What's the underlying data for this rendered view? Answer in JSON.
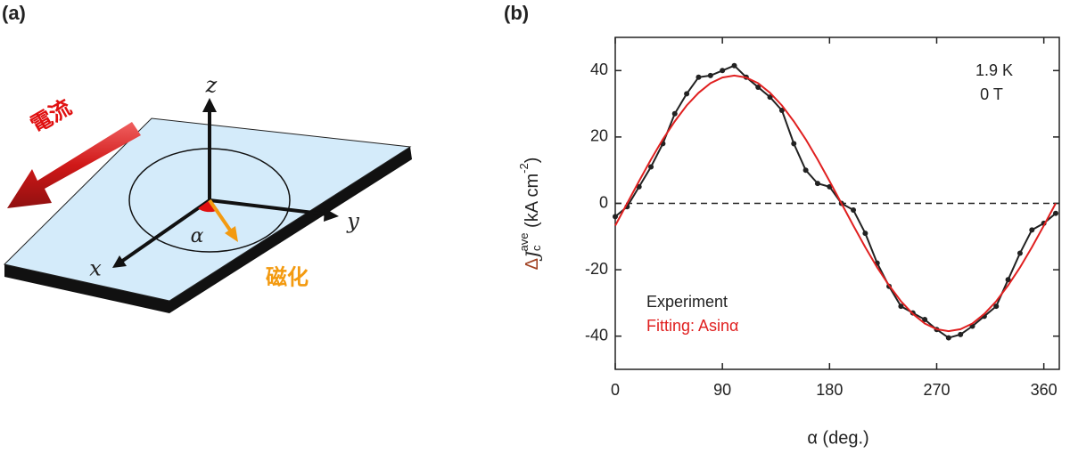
{
  "diagram": {
    "label": "(a)",
    "current_label": "電流",
    "magnetization_label": "磁化",
    "x_axis": "x",
    "y_axis": "y",
    "z_axis": "z",
    "angle_label": "α"
  },
  "chart_data": {
    "label": "(b)",
    "type": "line",
    "xlabel": "α (deg.)",
    "ylabel_parts": [
      "Δ",
      "J",
      "c",
      "ave",
      " (kA cm",
      "-2",
      ")"
    ],
    "annotations": [
      "1.9 K",
      "0 T"
    ],
    "xlim": [
      0,
      373
    ],
    "ylim": [
      -50,
      50
    ],
    "xticks": [
      0,
      90,
      180,
      270,
      360
    ],
    "yticks": [
      -40,
      -20,
      0,
      20,
      40
    ],
    "reference_line": 0,
    "series": [
      {
        "name": "Experiment",
        "color": "#222222",
        "markers": true,
        "x": [
          0,
          10,
          20,
          30,
          40,
          50,
          60,
          70,
          80,
          90,
          100,
          110,
          120,
          130,
          140,
          150,
          160,
          170,
          180,
          190,
          200,
          210,
          220,
          230,
          240,
          250,
          260,
          270,
          280,
          290,
          300,
          310,
          320,
          330,
          340,
          350,
          360,
          370
        ],
        "values": [
          -4,
          -1,
          5,
          11,
          18,
          27,
          33,
          38,
          38.5,
          40,
          41.5,
          38,
          35,
          32,
          28,
          18,
          10,
          6,
          5,
          0,
          -2,
          -9,
          -18,
          -25,
          -31,
          -33,
          -35,
          -38,
          -40.5,
          -39.5,
          -37,
          -34,
          -31,
          -23,
          -15,
          -8,
          -6,
          -3
        ]
      },
      {
        "name": "Fitting: Asinα",
        "color": "#e02020",
        "markers": false,
        "x": [
          0,
          10,
          20,
          30,
          40,
          50,
          60,
          70,
          80,
          90,
          100,
          110,
          120,
          130,
          140,
          150,
          160,
          170,
          180,
          190,
          200,
          210,
          220,
          230,
          240,
          250,
          260,
          270,
          280,
          290,
          300,
          310,
          320,
          330,
          340,
          350,
          360,
          370
        ],
        "values": [
          -6.7,
          0,
          6.7,
          13.2,
          19.3,
          24.7,
          29.5,
          33.3,
          36.2,
          37.9,
          38.5,
          37.9,
          36.2,
          33.3,
          29.5,
          24.7,
          19.3,
          13.2,
          6.7,
          0,
          -6.7,
          -13.2,
          -19.3,
          -24.7,
          -29.5,
          -33.3,
          -36.2,
          -37.9,
          -38.5,
          -37.9,
          -36.2,
          -33.3,
          -29.5,
          -24.7,
          -19.3,
          -13.2,
          -6.7,
          0
        ]
      }
    ]
  }
}
